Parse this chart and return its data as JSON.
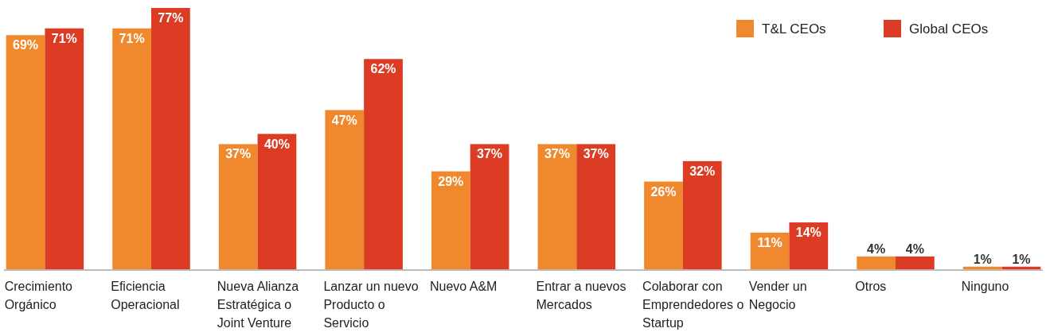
{
  "chart_data": {
    "type": "bar",
    "categories": [
      "Crecimiento Orgánico",
      "Eficiencia Operacional",
      "Nueva Alianza Estratégica o Joint Venture",
      "Lanzar un nuevo Producto o Servicio",
      "Nuevo A&M",
      "Entrar a nuevos Mercados",
      "Colaborar con Emprendedores o Startup",
      "Vender un Negocio",
      "Otros",
      "Ninguno"
    ],
    "series": [
      {
        "name": "T&L CEOs",
        "color": "#f0892d",
        "values": [
          69,
          71,
          37,
          47,
          29,
          37,
          26,
          11,
          4,
          1
        ],
        "value_labels": [
          "69%",
          "71%",
          "37%",
          "47%",
          "29%",
          "37%",
          "26%",
          "11%",
          "4%",
          "1%"
        ]
      },
      {
        "name": "Global CEOs",
        "color": "#dc3c24",
        "values": [
          71,
          77,
          40,
          62,
          37,
          37,
          32,
          14,
          4,
          1
        ],
        "value_labels": [
          "71%",
          "77%",
          "40%",
          "62%",
          "37%",
          "37%",
          "32%",
          "14%",
          "4%",
          "1%"
        ]
      }
    ],
    "legend": "top right",
    "grid": false
  }
}
